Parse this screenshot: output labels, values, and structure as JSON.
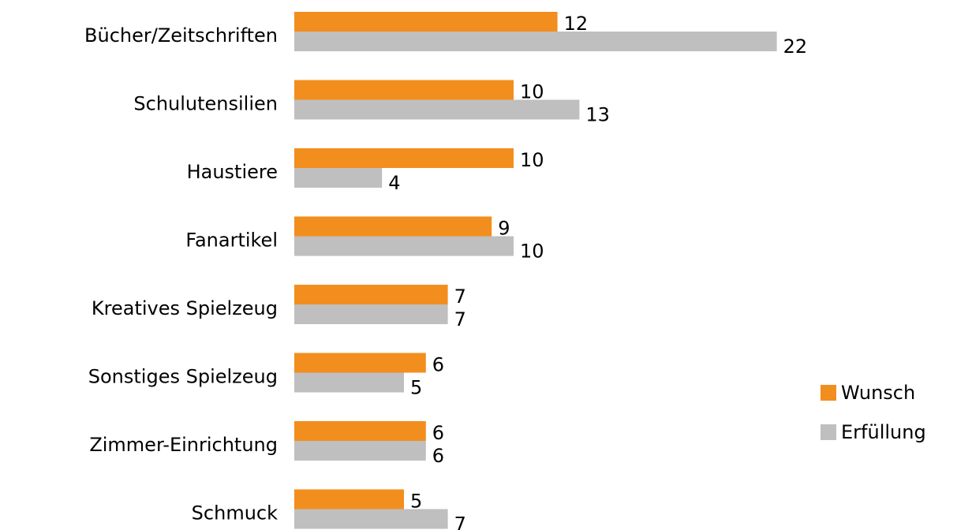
{
  "chart_data": {
    "type": "bar",
    "orientation": "horizontal",
    "categories": [
      "Bücher/Zeitschriften",
      "Schulutensilien",
      "Haustiere",
      "Fanartikel",
      "Kreatives Spielzeug",
      "Sonstiges Spielzeug",
      "Zimmer-Einrichtung",
      "Schmuck"
    ],
    "series": [
      {
        "name": "Wunsch",
        "color": "#f28e1e",
        "values": [
          12,
          10,
          10,
          9,
          7,
          6,
          6,
          5
        ]
      },
      {
        "name": "Erfüllung",
        "color": "#bfbfbf",
        "values": [
          22,
          13,
          4,
          10,
          7,
          5,
          6,
          7
        ]
      }
    ],
    "legend": "right"
  }
}
